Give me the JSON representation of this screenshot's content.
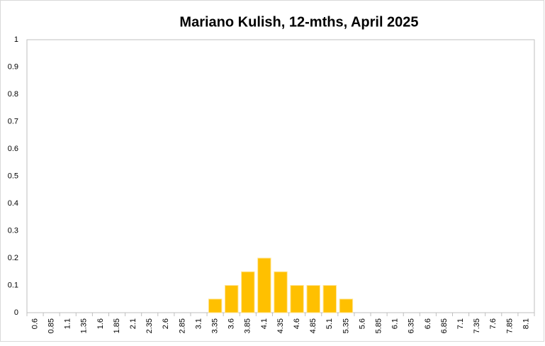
{
  "chart_data": {
    "type": "bar",
    "title": "Mariano Kulish, 12-mths, April 2025",
    "categories": [
      "0.6",
      "0.85",
      "1.1",
      "1.35",
      "1.6",
      "1.85",
      "2.1",
      "2.35",
      "2.6",
      "2.85",
      "3.1",
      "3.35",
      "3.6",
      "3.85",
      "4.1",
      "4.35",
      "4.6",
      "4.85",
      "5.1",
      "5.35",
      "5.6",
      "5.85",
      "6.1",
      "6.35",
      "6.6",
      "6.85",
      "7.1",
      "7.35",
      "7.6",
      "7.85",
      "8.1"
    ],
    "values": [
      0,
      0,
      0,
      0,
      0,
      0,
      0,
      0,
      0,
      0,
      0,
      0.05,
      0.1,
      0.15,
      0.2,
      0.15,
      0.1,
      0.1,
      0.1,
      0.05,
      0,
      0,
      0,
      0,
      0,
      0,
      0,
      0,
      0,
      0,
      0
    ],
    "color": "#ffc000",
    "ylim": [
      0,
      1
    ],
    "yticks": [
      0,
      0.1,
      0.2,
      0.3,
      0.4,
      0.5,
      0.6,
      0.7,
      0.8,
      0.9,
      1
    ],
    "grid": false
  }
}
